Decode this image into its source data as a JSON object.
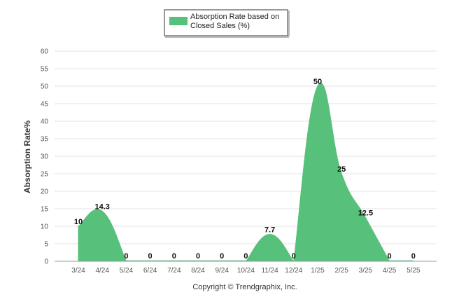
{
  "chart_data": {
    "type": "area",
    "categories": [
      "3/24",
      "4/24",
      "5/24",
      "6/24",
      "7/24",
      "8/24",
      "9/24",
      "10/24",
      "11/24",
      "12/24",
      "1/25",
      "2/25",
      "3/25",
      "4/25",
      "5/25"
    ],
    "series": [
      {
        "name": "Absorption Rate based on Closed Sales (%)",
        "values": [
          10,
          14.3,
          0,
          0,
          0,
          0,
          0,
          0,
          7.7,
          0,
          50,
          25,
          12.5,
          0,
          0
        ],
        "labels": [
          "10",
          "14.3",
          "0",
          "0",
          "0",
          "0",
          "0",
          "0",
          "7.7",
          "0",
          "50",
          "25",
          "12.5",
          "0",
          "0"
        ]
      }
    ],
    "ylabel": "Absorption Rate%",
    "xlabel": "",
    "ylim": [
      0,
      60
    ],
    "yticks": [
      0,
      5,
      10,
      15,
      20,
      25,
      30,
      35,
      40,
      45,
      50,
      55,
      60
    ],
    "grid": true,
    "legend_position": "top-center",
    "color": "#57c07a"
  },
  "legend": {
    "line1": "Absorption Rate based on",
    "line2": "Closed Sales (%)"
  },
  "footer": {
    "copyright": "Copyright © Trendgraphix, Inc."
  }
}
